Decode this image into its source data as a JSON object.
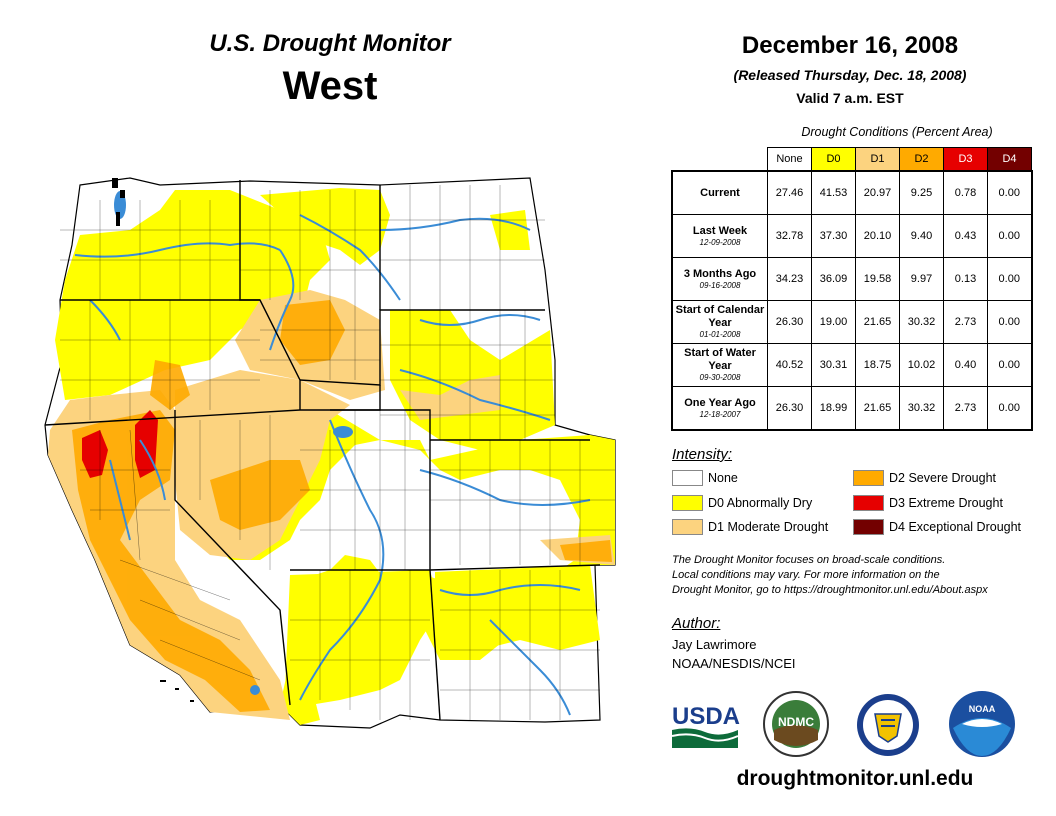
{
  "header": {
    "title": "U.S. Drought Monitor",
    "region": "West",
    "date": "December 16, 2008",
    "released": "(Released Thursday, Dec. 18, 2008)",
    "valid": "Valid 7 a.m. EST"
  },
  "conditions": {
    "title": "Drought Conditions (Percent Area)",
    "columns": [
      {
        "label": "None",
        "color": "#ffffff",
        "text": "#000000"
      },
      {
        "label": "D0",
        "color": "#ffff00",
        "text": "#000000"
      },
      {
        "label": "D1",
        "color": "#fcd37f",
        "text": "#000000"
      },
      {
        "label": "D2",
        "color": "#ffaa00",
        "text": "#000000"
      },
      {
        "label": "D3",
        "color": "#e60000",
        "text": "#ffffff"
      },
      {
        "label": "D4",
        "color": "#730000",
        "text": "#ffffff"
      }
    ],
    "rows": [
      {
        "label": "Current",
        "date": "",
        "values": [
          "27.46",
          "41.53",
          "20.97",
          "9.25",
          "0.78",
          "0.00"
        ]
      },
      {
        "label": "Last Week",
        "date": "12-09-2008",
        "values": [
          "32.78",
          "37.30",
          "20.10",
          "9.40",
          "0.43",
          "0.00"
        ]
      },
      {
        "label": "3 Months Ago",
        "date": "09-16-2008",
        "values": [
          "34.23",
          "36.09",
          "19.58",
          "9.97",
          "0.13",
          "0.00"
        ]
      },
      {
        "label": "Start of Calendar Year",
        "date": "01-01-2008",
        "values": [
          "26.30",
          "19.00",
          "21.65",
          "30.32",
          "2.73",
          "0.00"
        ]
      },
      {
        "label": "Start of Water Year",
        "date": "09-30-2008",
        "values": [
          "40.52",
          "30.31",
          "18.75",
          "10.02",
          "0.40",
          "0.00"
        ]
      },
      {
        "label": "One Year Ago",
        "date": "12-18-2007",
        "values": [
          "26.30",
          "18.99",
          "21.65",
          "30.32",
          "2.73",
          "0.00"
        ]
      }
    ]
  },
  "legend": {
    "title": "Intensity:",
    "items": [
      {
        "label": "None",
        "color": "#ffffff"
      },
      {
        "label": "D0 Abnormally Dry",
        "color": "#ffff00"
      },
      {
        "label": "D1 Moderate Drought",
        "color": "#fcd37f"
      },
      {
        "label": "D2 Severe Drought",
        "color": "#ffaa00"
      },
      {
        "label": "D3 Extreme Drought",
        "color": "#e60000"
      },
      {
        "label": "D4 Exceptional Drought",
        "color": "#730000"
      }
    ]
  },
  "note": {
    "line1": "The Drought Monitor focuses on broad-scale conditions.",
    "line2": "Local conditions may vary. For more information on the",
    "line3": "Drought Monitor, go to https://droughtmonitor.unl.edu/About.aspx"
  },
  "author": {
    "title": "Author:",
    "name": "Jay Lawrimore",
    "org": "NOAA/NESDIS/NCEI"
  },
  "logos": {
    "usda": "USDA",
    "ndmc": "NDMC",
    "noaa": "NOAA"
  },
  "footer_url": "droughtmonitor.unl.edu"
}
